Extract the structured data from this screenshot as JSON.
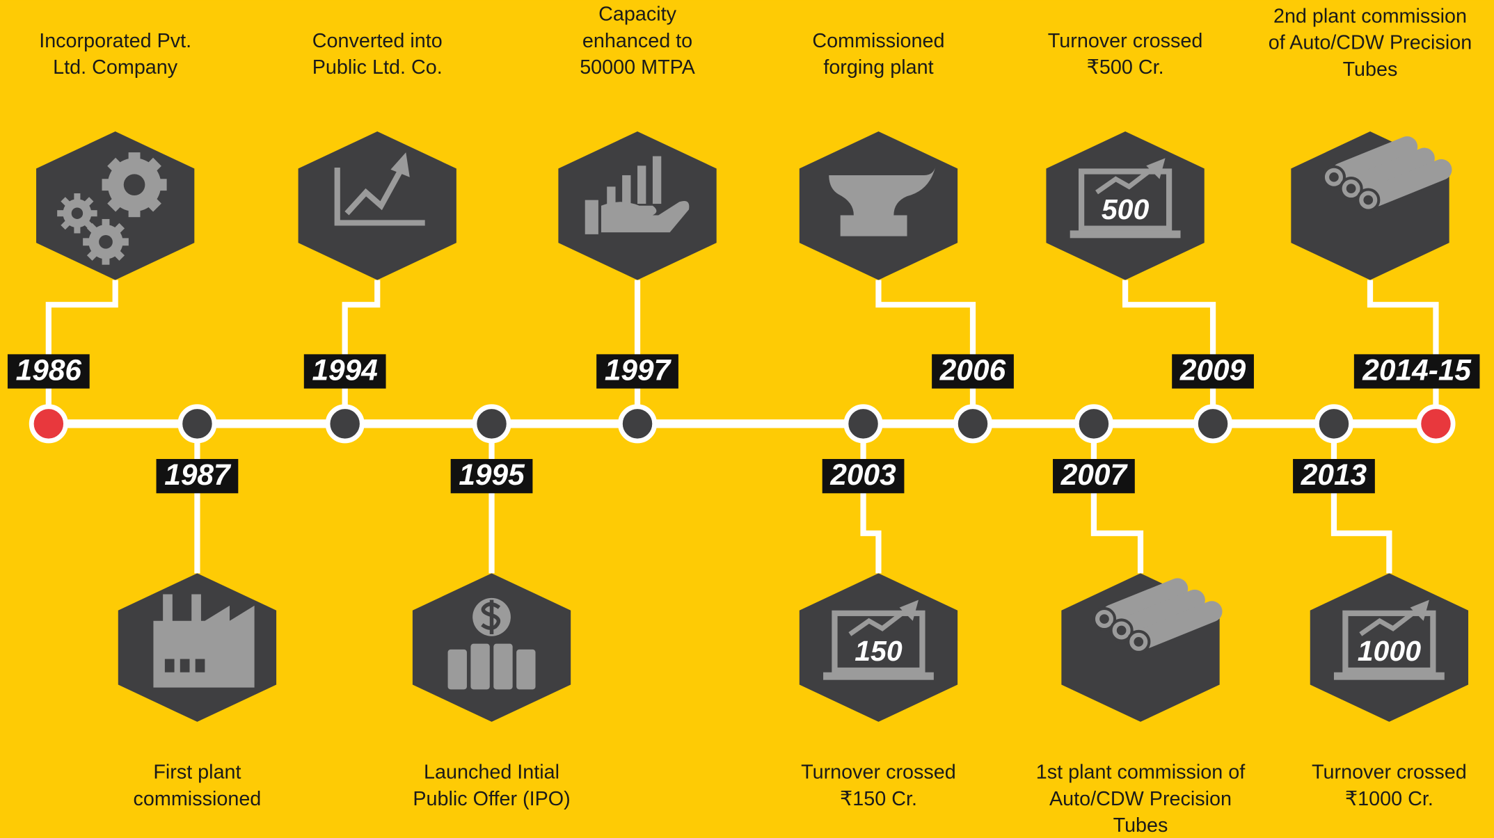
{
  "events": [
    {
      "year": "1986",
      "lines": [
        "Incorporated Pvt.",
        "Ltd. Company"
      ]
    },
    {
      "year": "1987",
      "lines": [
        "First plant",
        "commissioned"
      ]
    },
    {
      "year": "1994",
      "lines": [
        "Converted into",
        "Public Ltd. Co."
      ]
    },
    {
      "year": "1995",
      "lines": [
        "Launched Intial",
        "Public Offer (IPO)"
      ]
    },
    {
      "year": "1997",
      "lines": [
        "Capacity",
        "enhanced to",
        "50000 MTPA"
      ]
    },
    {
      "year": "2003",
      "lines": [
        "Turnover crossed",
        "₹150 Cr."
      ],
      "icon_text": "150"
    },
    {
      "year": "2006",
      "lines": [
        "Commissioned",
        "forging plant"
      ]
    },
    {
      "year": "2007",
      "lines": [
        "1st plant commission of",
        "Auto/CDW Precision",
        "Tubes"
      ]
    },
    {
      "year": "2009",
      "lines": [
        "Turnover crossed",
        "₹500 Cr."
      ],
      "icon_text": "500"
    },
    {
      "year": "2013",
      "lines": [
        "Turnover crossed",
        "₹1000 Cr."
      ],
      "icon_text": "1000"
    },
    {
      "year": "2014-15",
      "lines": [
        "2nd plant commission",
        "of Auto/CDW Precision",
        "Tubes"
      ]
    }
  ]
}
